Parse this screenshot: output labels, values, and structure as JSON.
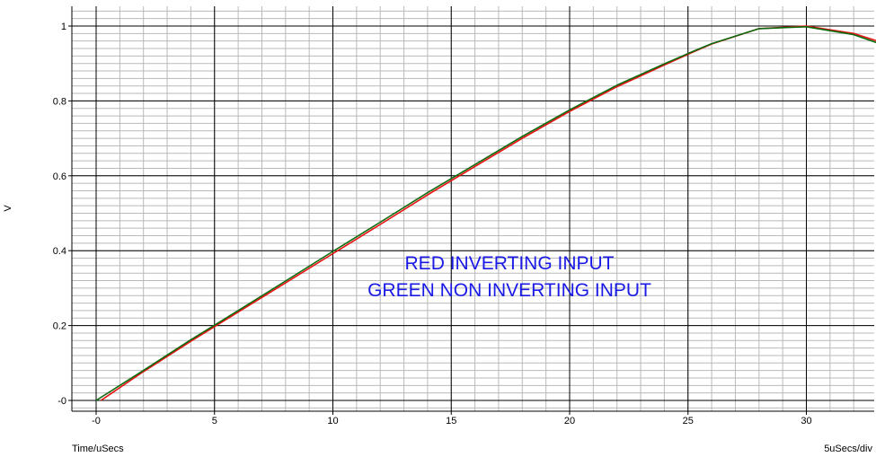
{
  "chart_data": {
    "type": "line",
    "title": "",
    "xlabel": "Time/uSecs",
    "ylabel": "V",
    "x_scale_label": "5uSecs/div",
    "xlim": [
      -0.5,
      33
    ],
    "ylim": [
      -0.05,
      1.05
    ],
    "x_ticks": [
      0,
      5,
      10,
      15,
      20,
      25,
      30
    ],
    "x_tick_labels": [
      "-0",
      "5",
      "10",
      "15",
      "20",
      "25",
      "30"
    ],
    "y_ticks": [
      0,
      0.2,
      0.4,
      0.6,
      0.8,
      1
    ],
    "y_tick_labels": [
      "-0",
      "0.2",
      "0.4",
      "0.6",
      "0.8",
      "1"
    ],
    "grid": true,
    "annotations": [
      "RED INVERTING INPUT",
      "GREEN NON INVERTING INPUT"
    ],
    "series": [
      {
        "color": "#e81010",
        "x": [
          0.2,
          2,
          4,
          6,
          8,
          10,
          12,
          14,
          16,
          18,
          20,
          22,
          24,
          25.2,
          26,
          28,
          30,
          32,
          33
        ],
        "y": [
          0.0,
          0.077,
          0.158,
          0.236,
          0.314,
          0.392,
          0.47,
          0.549,
          0.625,
          0.7,
          0.772,
          0.838,
          0.896,
          0.93,
          0.952,
          0.993,
          1.0,
          0.98,
          0.96
        ]
      },
      {
        "color": "#0d6b0d",
        "x": [
          0,
          2,
          4,
          6,
          8,
          10,
          12,
          14,
          16,
          18,
          20,
          22,
          24,
          25.2,
          26,
          28,
          30,
          32,
          33
        ],
        "y": [
          0.0,
          0.08,
          0.162,
          0.24,
          0.319,
          0.398,
          0.476,
          0.555,
          0.63,
          0.705,
          0.776,
          0.842,
          0.899,
          0.932,
          0.953,
          0.993,
          0.998,
          0.977,
          0.955
        ]
      }
    ]
  }
}
